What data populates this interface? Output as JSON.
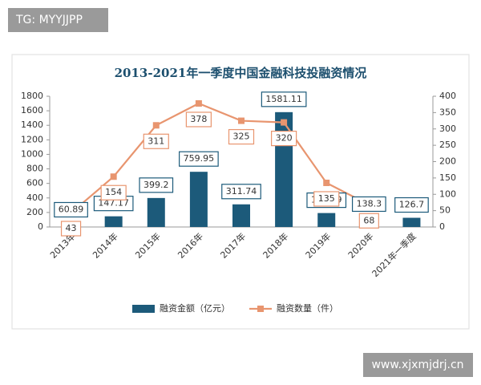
{
  "watermarks": {
    "top_left": "TG: MYYJJPP",
    "bottom_right": "www.xjxmjdrj.cn"
  },
  "chart_data": {
    "type": "bar",
    "title": "2013-2021年一季度中国金融科技投融资情况",
    "categories": [
      "2013年",
      "2014年",
      "2015年",
      "2016年",
      "2017年",
      "2018年",
      "2019年",
      "2020年",
      "2021年一季度"
    ],
    "series": [
      {
        "name": "融资金额（亿元）",
        "type": "bar",
        "color": "#1c5a7a",
        "values": [
          60.89,
          147.17,
          399.2,
          759.95,
          311.74,
          1581.11,
          192.09,
          138.3,
          126.7
        ]
      },
      {
        "name": "融资数量（件）",
        "type": "line",
        "axis": "y2",
        "color": "#e8956f",
        "values": [
          43,
          154,
          311,
          378,
          325,
          320,
          135,
          68,
          null
        ]
      }
    ],
    "ylim": [
      0,
      1800
    ],
    "yticks": [
      0,
      200,
      400,
      600,
      800,
      1000,
      1200,
      1400,
      1600,
      1800
    ],
    "y2lim": [
      0,
      400
    ],
    "y2ticks": [
      0,
      50,
      100,
      150,
      200,
      250,
      300,
      350,
      400
    ]
  }
}
